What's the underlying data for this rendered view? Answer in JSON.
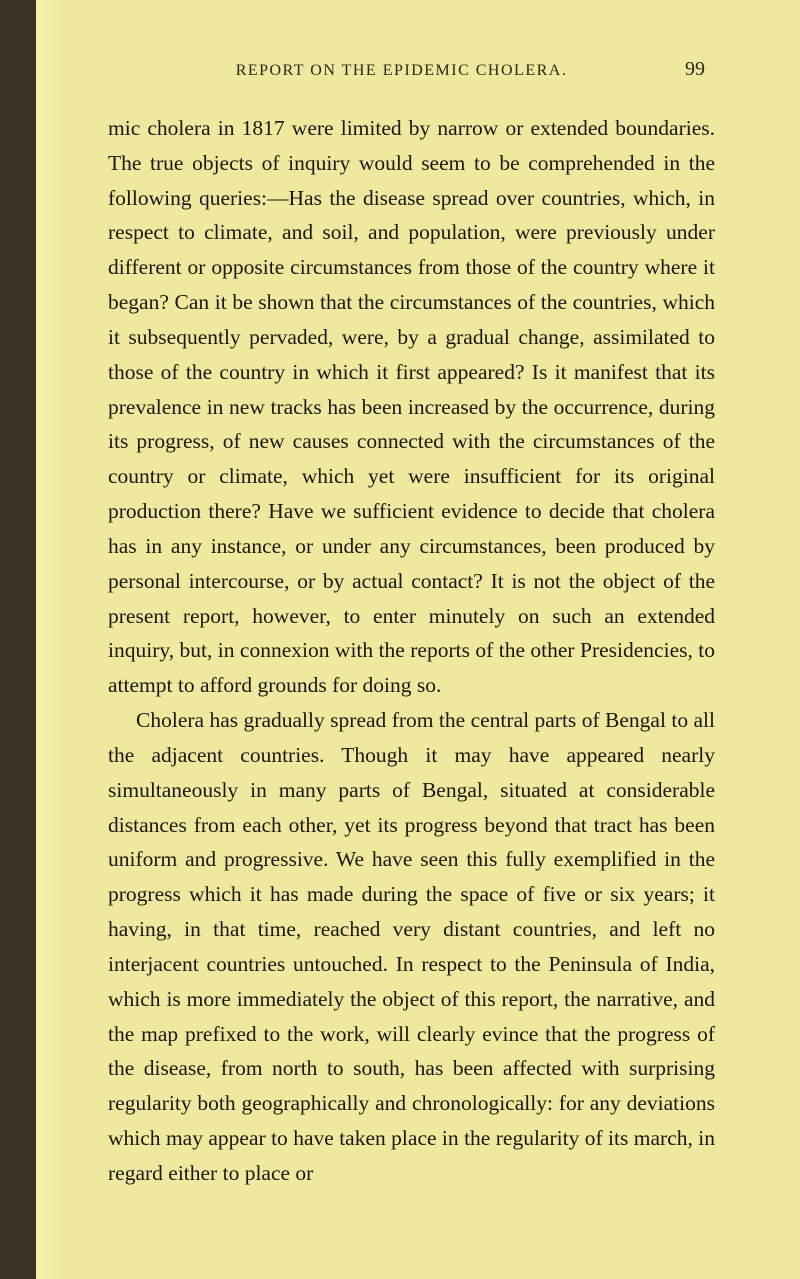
{
  "page": {
    "running_title": "REPORT ON THE EPIDEMIC CHOLERA.",
    "page_number": "99",
    "paragraph1": "mic cholera in 1817 were limited by narrow or extended boundaries. The true objects of inquiry would seem to be comprehended in the following queries:—Has the disease spread over countries, which, in respect to climate, and soil, and population, were previously under different or opposite circumstances from those of the country where it began? Can it be shown that the circumstances of the countries, which it subsequently pervaded, were, by a gradual change, assimilated to those of the country in which it first appeared? Is it manifest that its prevalence in new tracks has been increased by the occurrence, during its progress, of new causes connected with the circumstances of the country or climate, which yet were insufficient for its original production there? Have we sufficient evidence to decide that cholera has in any instance, or under any circumstances, been produced by personal intercourse, or by actual contact? It is not the object of the present report, however, to enter minutely on such an extended inquiry, but, in connexion with the reports of the other Presidencies, to attempt to afford grounds for doing so.",
    "paragraph2": "Cholera has gradually spread from the central parts of Bengal to all the adjacent countries. Though it may have appeared nearly simultaneously in many parts of Bengal, situated at considerable distances from each other, yet its progress beyond that tract has been uniform and progressive. We have seen this fully exemplified in the progress which it has made during the space of five or six years; it having, in that time, reached very distant countries, and left no interjacent countries untouched. In respect to the Peninsula of India, which is more immediately the object of this report, the narrative, and the map prefixed to the work, will clearly evince that the progress of the disease, from north to south, has been affected with surprising regularity both geographically and chronologically: for any deviations which may appear to have taken place in the regularity of its march, in regard either to place or"
  },
  "styling": {
    "background_color": "#f0e89e",
    "text_color": "#1a1810",
    "header_color": "#2a2618",
    "strip_color": "#3a3424",
    "body_fontsize": 21.5,
    "header_fontsize": 16,
    "pagenum_fontsize": 20,
    "line_height": 1.62
  }
}
